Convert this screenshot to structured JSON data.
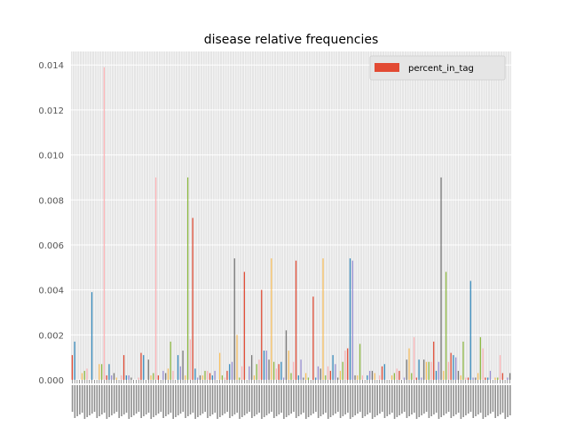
{
  "chart_data": {
    "type": "bar",
    "title": "disease relative frequencies",
    "xlabel": "",
    "ylabel": "",
    "legend": {
      "label": "percent_in_tag",
      "color": "#E24A33",
      "placement": "top-right"
    },
    "ylim": [
      0,
      0.0146
    ],
    "yticks": [
      "0.000",
      "0.002",
      "0.004",
      "0.006",
      "0.008",
      "0.010",
      "0.012",
      "0.014"
    ],
    "grid": true,
    "palette": [
      "#E24A33",
      "#348ABD",
      "#988ED5",
      "#777777",
      "#FBC15E",
      "#8EBA42",
      "#FFB5B8"
    ],
    "note_x_tick_labels": "unreadable overlapping category labels",
    "values": [
      0.0011,
      0.0017,
      0.0,
      0.0,
      0.0003,
      0.0004,
      0.0005,
      0.0,
      0.0039,
      0.0,
      0.0,
      0.0007,
      0.0007,
      0.0139,
      0.0002,
      0.0007,
      0.0002,
      0.0003,
      0.0001,
      0.0,
      0.0002,
      0.0011,
      0.0002,
      0.0002,
      0.0001,
      0.0,
      0.0,
      0.0001,
      0.0012,
      0.0011,
      0.0,
      0.0009,
      0.0002,
      0.0003,
      0.009,
      0.0002,
      0.0,
      0.0004,
      0.0003,
      0.0005,
      0.0017,
      0.0004,
      0.0,
      0.0011,
      0.0006,
      0.0013,
      0.0002,
      0.009,
      0.0018,
      0.0072,
      0.0005,
      0.0001,
      0.0002,
      0.0002,
      0.0004,
      0.0004,
      0.0003,
      0.0002,
      0.0004,
      0.0,
      0.0012,
      0.0002,
      0.0001,
      0.0004,
      0.0007,
      0.0008,
      0.0054,
      0.002,
      0.0001,
      0.0006,
      0.0048,
      0.0,
      0.0006,
      0.0011,
      0.0002,
      0.0007,
      0.0009,
      0.004,
      0.0013,
      0.0013,
      0.0009,
      0.0054,
      0.0008,
      0.0005,
      0.0007,
      0.0008,
      0.0001,
      0.0022,
      0.0013,
      0.0003,
      0.0008,
      0.0053,
      0.0002,
      0.0009,
      0.0001,
      0.0003,
      0.0001,
      0.0,
      0.0037,
      0.0001,
      0.0006,
      0.0005,
      0.0054,
      0.0002,
      0.0006,
      0.0004,
      0.0011,
      0.0007,
      0.0001,
      0.0004,
      0.0008,
      0.0013,
      0.0014,
      0.0054,
      0.0053,
      0.0002,
      0.0002,
      0.0016,
      0.0002,
      0.0,
      0.0002,
      0.0004,
      0.0004,
      0.0003,
      0.0,
      0.0002,
      0.0006,
      0.0007,
      0.0,
      0.0,
      0.0002,
      0.0003,
      0.0005,
      0.0004,
      0.0,
      0.0001,
      0.0009,
      0.0014,
      0.0003,
      0.0019,
      0.0001,
      0.0009,
      0.0001,
      0.0009,
      0.0008,
      0.0008,
      0.0008,
      0.0017,
      0.0004,
      0.0008,
      0.009,
      0.0004,
      0.0048,
      0.0008,
      0.0012,
      0.0011,
      0.001,
      0.0004,
      0.0002,
      0.0017,
      0.0001,
      0.0001,
      0.0044,
      0.0001,
      0.0001,
      0.0003,
      0.0019,
      0.0014,
      0.0001,
      0.0001,
      0.0004,
      0.0,
      0.0001,
      0.0001,
      0.0011,
      0.0003,
      0.0,
      0.0001,
      0.0003
    ]
  }
}
